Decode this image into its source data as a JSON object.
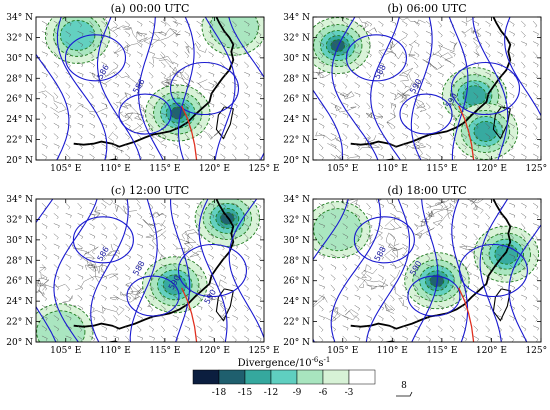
{
  "panels": [
    {
      "id": "a",
      "title": "(a) 00:00 UTC",
      "contour_labels": [
        "586",
        "586"
      ],
      "divergence_centers": [
        {
          "lon": 116.3,
          "lat": 24.6,
          "min": -15
        },
        {
          "lon": 106.2,
          "lat": 32.2,
          "min": -9
        },
        {
          "lon": 122.0,
          "lat": 33.0,
          "min": -6
        }
      ]
    },
    {
      "id": "b",
      "title": "(b) 06:00 UTC",
      "contour_labels": [
        "588",
        "590",
        "590"
      ],
      "divergence_centers": [
        {
          "lon": 104.5,
          "lat": 31.2,
          "min": -15
        },
        {
          "lon": 118.3,
          "lat": 26.3,
          "min": -12
        },
        {
          "lon": 119.4,
          "lat": 22.8,
          "min": -12
        }
      ]
    },
    {
      "id": "c",
      "title": "(c) 12:00 UTC",
      "contour_labels": [
        "586",
        "588",
        "590",
        "590"
      ],
      "divergence_centers": [
        {
          "lon": 121.3,
          "lat": 32.1,
          "min": -15
        },
        {
          "lon": 116.0,
          "lat": 25.6,
          "min": -12
        },
        {
          "lon": 104.5,
          "lat": 21.0,
          "min": -6
        }
      ]
    },
    {
      "id": "d",
      "title": "(d) 18:00 UTC",
      "contour_labels": [
        "588",
        "590"
      ],
      "divergence_centers": [
        {
          "lon": 114.5,
          "lat": 26.0,
          "min": -15
        },
        {
          "lon": 121.5,
          "lat": 28.6,
          "min": -12
        },
        {
          "lon": 104.5,
          "lat": 31.0,
          "min": -6
        }
      ]
    }
  ],
  "axes": {
    "lon_range": [
      102,
      125
    ],
    "lat_range": [
      20,
      34
    ],
    "lon_ticks": [
      105,
      110,
      115,
      120,
      125
    ],
    "lon_tick_labels": [
      "105° E",
      "110° E",
      "115° E",
      "120° E",
      "125° E"
    ],
    "lat_ticks": [
      20,
      22,
      24,
      26,
      28,
      30,
      32,
      34
    ],
    "lat_tick_labels": [
      "20° N",
      "22° N",
      "24° N",
      "26° N",
      "28° N",
      "30° N",
      "32° N",
      "34° N"
    ]
  },
  "colorbar": {
    "title": "Divergence/10",
    "title_exponent": "-6",
    "title_suffix": "s",
    "title_suffix_exponent": "-1",
    "levels": [
      -18,
      -15,
      -12,
      -9,
      -6,
      -3
    ],
    "labels": [
      "-18",
      "-15",
      "-12",
      "-9",
      "-6",
      "-3"
    ],
    "colors": [
      "#0b1e3f",
      "#1f5f6e",
      "#35a89e",
      "#5fcfc0",
      "#a8e5bf",
      "#d7f2d6",
      "#ffffff"
    ]
  },
  "wind_reference": {
    "value": "8"
  },
  "colors": {
    "contour": "#1a1ad0",
    "outline": "#3c3c3c",
    "coast": "#000000",
    "track": "#e03020",
    "dashed": "#1c7a1c"
  }
}
